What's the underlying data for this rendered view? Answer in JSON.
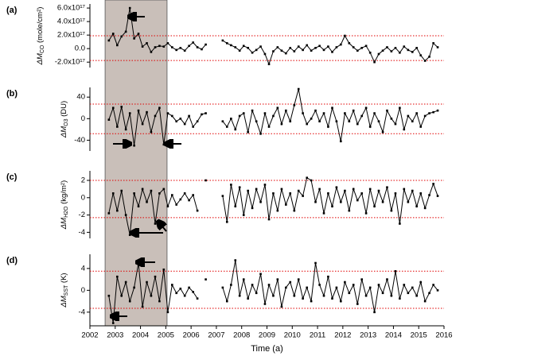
{
  "chart_data": [
    {
      "type": "line",
      "panel_label": "(a)",
      "ylabel": {
        "symbol": "ΔM",
        "sub": "CO",
        "unit": " (mole/cm²)"
      },
      "shade": [
        2002.6,
        2005.05
      ],
      "threshold_color": "#e00000",
      "color": "#000000",
      "xlim": [
        2002,
        2016
      ],
      "x": [
        2002.75,
        2002.92,
        2003.08,
        2003.25,
        2003.42,
        2003.58,
        2003.75,
        2003.92,
        2004.08,
        2004.25,
        2004.42,
        2004.58,
        2004.75,
        2004.92,
        2005.08,
        2005.25,
        2005.42,
        2005.58,
        2005.75,
        2005.92,
        2006.08,
        2006.25,
        2006.42,
        2006.58,
        2006.75,
        2006.92,
        2007.08,
        2007.25,
        2007.42,
        2007.58,
        2007.75,
        2007.92,
        2008.08,
        2008.25,
        2008.42,
        2008.58,
        2008.75,
        2008.92,
        2009.08,
        2009.25,
        2009.42,
        2009.58,
        2009.75,
        2009.92,
        2010.08,
        2010.25,
        2010.42,
        2010.58,
        2010.75,
        2010.92,
        2011.08,
        2011.25,
        2011.42,
        2011.58,
        2011.75,
        2011.92,
        2012.08,
        2012.25,
        2012.42,
        2012.58,
        2012.75,
        2012.92,
        2013.08,
        2013.25,
        2013.42,
        2013.58,
        2013.75,
        2013.92,
        2014.08,
        2014.25,
        2014.42,
        2014.58,
        2014.75,
        2014.92,
        2015.08,
        2015.25,
        2015.42,
        2015.58,
        2015.75
      ],
      "values": [
        1.2e+17,
        2.2e+17,
        5e+16,
        1.8e+17,
        2.5e+17,
        6e+17,
        1.5e+17,
        2.2e+17,
        3e+16,
        8e+16,
        -5e+16,
        2e+16,
        4e+16,
        3e+16,
        8e+16,
        2e+16,
        -2e+16,
        1e+16,
        -3e+16,
        4e+16,
        9e+16,
        2e+16,
        -1e+16,
        6e+16,
        null,
        null,
        null,
        1.2e+17,
        8e+16,
        5e+16,
        2e+16,
        -3e+16,
        4e+16,
        1e+16,
        -6e+16,
        -2e+16,
        3e+16,
        -8e+16,
        -2.3e+17,
        -4e+16,
        2e+16,
        -3e+16,
        -7e+16,
        1e+16,
        -4e+16,
        3e+16,
        -2e+16,
        5e+16,
        -3e+16,
        1e+16,
        4e+16,
        -2e+16,
        3e+16,
        -5e+16,
        2e+16,
        6e+16,
        1.9e+17,
        8e+16,
        2e+16,
        -3e+16,
        1e+16,
        4e+16,
        -6e+16,
        -2e+17,
        -8e+16,
        -3e+16,
        2e+16,
        -4e+16,
        1e+16,
        -6e+16,
        3e+16,
        -2e+16,
        -5e+16,
        1e+16,
        -1e+17,
        -1.8e+17,
        -1.2e+17,
        8e+16,
        2e+16
      ],
      "thresholds": [
        1.9e+17,
        -1.75e+17
      ],
      "ylim": [
        -2.8e+17,
        6.6e+17
      ],
      "yticks": [
        {
          "value": -2e+17,
          "label": "-2.0x10¹⁷"
        },
        {
          "value": 0,
          "label": "0.0"
        },
        {
          "value": 2e+17,
          "label": "2.0x10¹⁷"
        },
        {
          "value": 4e+17,
          "label": "4.0x10¹⁷"
        },
        {
          "value": 6e+17,
          "label": "6.0x10¹⁷"
        }
      ]
    },
    {
      "type": "line",
      "panel_label": "(b)",
      "ylabel": {
        "symbol": "ΔM",
        "sub": "O3",
        "unit": " (DU)"
      },
      "threshold_color": "#e00000",
      "color": "#000000",
      "xlim": [
        2002,
        2016
      ],
      "x": [
        2002.75,
        2002.92,
        2003.08,
        2003.25,
        2003.42,
        2003.58,
        2003.75,
        2003.92,
        2004.08,
        2004.25,
        2004.42,
        2004.58,
        2004.75,
        2004.92,
        2005.08,
        2005.25,
        2005.42,
        2005.58,
        2005.75,
        2005.92,
        2006.08,
        2006.25,
        2006.42,
        2006.58,
        2006.75,
        2006.92,
        2007.08,
        2007.25,
        2007.42,
        2007.58,
        2007.75,
        2007.92,
        2008.08,
        2008.25,
        2008.42,
        2008.58,
        2008.75,
        2008.92,
        2009.08,
        2009.25,
        2009.42,
        2009.58,
        2009.75,
        2009.92,
        2010.08,
        2010.25,
        2010.42,
        2010.58,
        2010.75,
        2010.92,
        2011.08,
        2011.25,
        2011.42,
        2011.58,
        2011.75,
        2011.92,
        2012.08,
        2012.25,
        2012.42,
        2012.58,
        2012.75,
        2012.92,
        2013.08,
        2013.25,
        2013.42,
        2013.58,
        2013.75,
        2013.92,
        2014.08,
        2014.25,
        2014.42,
        2014.58,
        2014.75,
        2014.92,
        2015.08,
        2015.25,
        2015.42,
        2015.58,
        2015.75
      ],
      "values": [
        -2,
        20,
        -15,
        22,
        -20,
        10,
        -50,
        15,
        -10,
        12,
        -25,
        5,
        20,
        -48,
        10,
        5,
        -5,
        0,
        -10,
        5,
        -15,
        -5,
        8,
        10,
        null,
        null,
        null,
        -5,
        -15,
        0,
        -20,
        5,
        10,
        -25,
        15,
        -5,
        -28,
        10,
        -15,
        5,
        20,
        -10,
        15,
        -5,
        25,
        55,
        10,
        -10,
        0,
        15,
        -5,
        10,
        -15,
        20,
        -5,
        -42,
        10,
        -5,
        15,
        -10,
        5,
        20,
        -15,
        10,
        -5,
        -25,
        15,
        0,
        -10,
        20,
        -20,
        5,
        -5,
        10,
        -15,
        5,
        10,
        12,
        15
      ],
      "thresholds": [
        27,
        -28
      ],
      "ylim": [
        -60,
        58
      ],
      "yticks": [
        -40,
        0,
        40
      ]
    },
    {
      "type": "line",
      "panel_label": "(c)",
      "ylabel": {
        "symbol": "ΔM",
        "sub": "H2O",
        "unit": " (kg/m²)"
      },
      "threshold_color": "#e00000",
      "color": "#000000",
      "xlim": [
        2002,
        2016
      ],
      "x": [
        2002.75,
        2002.92,
        2003.08,
        2003.25,
        2003.42,
        2003.58,
        2003.75,
        2003.92,
        2004.08,
        2004.25,
        2004.42,
        2004.58,
        2004.75,
        2004.92,
        2005.08,
        2005.25,
        2005.42,
        2005.58,
        2005.75,
        2005.92,
        2006.08,
        2006.25,
        2006.42,
        2006.58,
        2006.75,
        2006.92,
        2007.08,
        2007.25,
        2007.42,
        2007.58,
        2007.75,
        2007.92,
        2008.08,
        2008.25,
        2008.42,
        2008.58,
        2008.75,
        2008.92,
        2009.08,
        2009.25,
        2009.42,
        2009.58,
        2009.75,
        2009.92,
        2010.08,
        2010.25,
        2010.42,
        2010.58,
        2010.75,
        2010.92,
        2011.08,
        2011.25,
        2011.42,
        2011.58,
        2011.75,
        2011.92,
        2012.08,
        2012.25,
        2012.42,
        2012.58,
        2012.75,
        2012.92,
        2013.08,
        2013.25,
        2013.42,
        2013.58,
        2013.75,
        2013.92,
        2014.08,
        2014.25,
        2014.42,
        2014.58,
        2014.75,
        2014.92,
        2015.08,
        2015.25,
        2015.42,
        2015.58,
        2015.75
      ],
      "values": [
        -1.8,
        0.5,
        -1.5,
        0.8,
        -2.0,
        -4.3,
        0.5,
        -1.0,
        1.0,
        -0.5,
        0.8,
        -3.0,
        0.5,
        1.0,
        -1.0,
        0.3,
        -0.8,
        -0.2,
        0.5,
        -0.3,
        0.3,
        -1.5,
        null,
        2.0,
        null,
        null,
        null,
        0.2,
        -2.8,
        1.5,
        -1.0,
        1.2,
        -2.0,
        0.8,
        -1.2,
        1.0,
        -0.5,
        1.5,
        -2.5,
        0.5,
        -1.5,
        1.0,
        -0.8,
        0.5,
        -1.5,
        0.8,
        0.2,
        2.3,
        2.0,
        -0.5,
        1.0,
        -1.8,
        0.5,
        -1.0,
        1.2,
        -0.5,
        0.8,
        -1.5,
        1.0,
        -0.3,
        0.5,
        -1.8,
        1.0,
        -1.0,
        0.8,
        -0.5,
        1.2,
        -1.5,
        0.5,
        -3.0,
        1.0,
        -0.5,
        0.8,
        -1.0,
        0.5,
        -1.2,
        0.3,
        1.6,
        0.2
      ],
      "thresholds": [
        2.0,
        -2.3
      ],
      "ylim": [
        -4.7,
        3.1
      ],
      "yticks": [
        -4,
        -2,
        0,
        2
      ]
    },
    {
      "type": "line",
      "panel_label": "(d)",
      "ylabel": {
        "symbol": "ΔM",
        "sub": "SST",
        "unit": " (K)"
      },
      "threshold_color": "#e00000",
      "color": "#000000",
      "xlim": [
        2002,
        2016
      ],
      "xticks": [
        2002,
        2003,
        2004,
        2005,
        2006,
        2007,
        2008,
        2009,
        2010,
        2011,
        2012,
        2013,
        2014,
        2015,
        2016
      ],
      "xlabel": "Time (a)",
      "x": [
        2002.75,
        2002.92,
        2003.08,
        2003.25,
        2003.42,
        2003.58,
        2003.75,
        2003.92,
        2004.08,
        2004.25,
        2004.42,
        2004.58,
        2004.75,
        2004.92,
        2005.08,
        2005.25,
        2005.42,
        2005.58,
        2005.75,
        2005.92,
        2006.08,
        2006.25,
        2006.42,
        2006.58,
        2006.75,
        2006.92,
        2007.08,
        2007.25,
        2007.42,
        2007.58,
        2007.75,
        2007.92,
        2008.08,
        2008.25,
        2008.42,
        2008.58,
        2008.75,
        2008.92,
        2009.08,
        2009.25,
        2009.42,
        2009.58,
        2009.75,
        2009.92,
        2010.08,
        2010.25,
        2010.42,
        2010.58,
        2010.75,
        2010.92,
        2011.08,
        2011.25,
        2011.42,
        2011.58,
        2011.75,
        2011.92,
        2012.08,
        2012.25,
        2012.42,
        2012.58,
        2012.75,
        2012.92,
        2013.08,
        2013.25,
        2013.42,
        2013.58,
        2013.75,
        2013.92,
        2014.08,
        2014.25,
        2014.42,
        2014.58,
        2014.75,
        2014.92,
        2015.08,
        2015.25,
        2015.42,
        2015.58,
        2015.75
      ],
      "values": [
        -1.0,
        -6.0,
        2.5,
        -1.0,
        1.5,
        -2.0,
        0.5,
        5.0,
        -3.0,
        1.5,
        -1.0,
        2.5,
        -2.0,
        3.8,
        -4.0,
        1.0,
        -0.5,
        0.3,
        -1.0,
        0.5,
        -0.3,
        -1.5,
        null,
        2.0,
        null,
        null,
        null,
        0.5,
        -2.0,
        1.0,
        5.5,
        -1.0,
        2.0,
        -1.5,
        1.0,
        -0.5,
        3.0,
        -2.5,
        1.0,
        -1.0,
        2.0,
        -3.0,
        0.5,
        1.5,
        -1.0,
        2.0,
        -1.5,
        0.5,
        -2.0,
        5.0,
        1.0,
        -1.0,
        2.5,
        -1.5,
        0.5,
        -2.0,
        1.5,
        -0.5,
        1.0,
        -2.5,
        2.0,
        -1.0,
        0.5,
        -4.0,
        1.0,
        -0.5,
        2.0,
        -1.0,
        3.5,
        -1.5,
        1.0,
        -0.5,
        0.5,
        -1.0,
        1.5,
        -2.0,
        -0.5,
        1.0,
        0.0
      ],
      "thresholds": [
        3.5,
        -3.3
      ],
      "ylim": [
        -6.5,
        6.6
      ],
      "yticks": [
        -4,
        0,
        4
      ]
    }
  ]
}
